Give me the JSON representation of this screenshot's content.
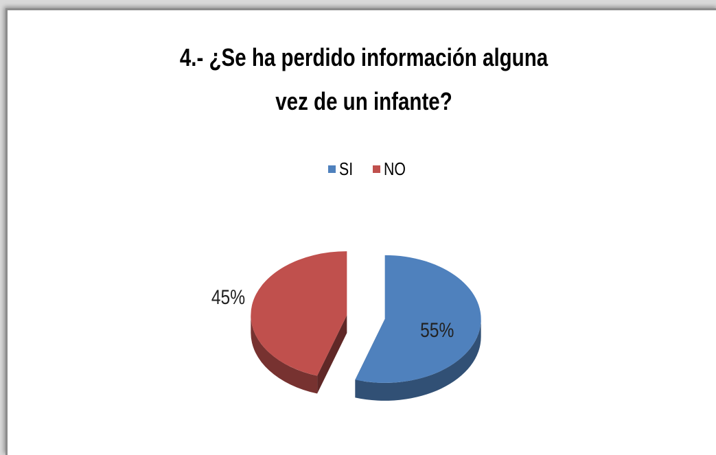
{
  "chart_data": {
    "type": "pie",
    "title": "4.- ¿Se ha perdido información alguna vez de un infante?",
    "categories": [
      "SI",
      "NO"
    ],
    "values": [
      55,
      45
    ],
    "value_labels": [
      "55%",
      "45%"
    ],
    "colors": [
      "#4f81bd",
      "#c0504d"
    ],
    "legend": "top"
  }
}
